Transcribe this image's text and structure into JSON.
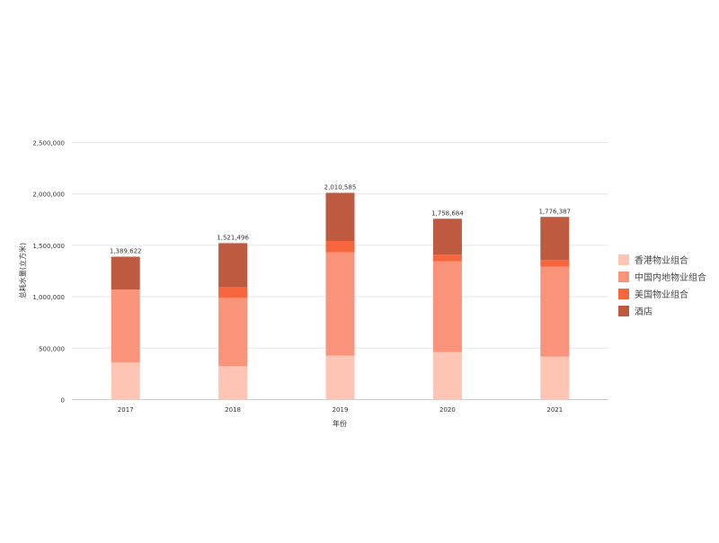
{
  "chart_data": {
    "type": "bar",
    "stacked": true,
    "categories": [
      "2017",
      "2018",
      "2019",
      "2020",
      "2021"
    ],
    "series": [
      {
        "name": "香港物业组合",
        "color": "#fec4b4",
        "values": [
          363000,
          325000,
          427000,
          462000,
          418000
        ]
      },
      {
        "name": "中国内地物业组合",
        "color": "#f9937a",
        "values": [
          708000,
          667000,
          1005000,
          882000,
          874000
        ]
      },
      {
        "name": "美国物业组合",
        "color": "#f7653d",
        "values": [
          0,
          105000,
          111000,
          65000,
          67000
        ]
      },
      {
        "name": "酒店",
        "color": "#bd5a40",
        "values": [
          318622,
          424496,
          467585,
          349684,
          417387
        ]
      }
    ],
    "totals": [
      "1,389,622",
      "1,521,496",
      "2,010,585",
      "1,758,684",
      "1,776,387"
    ],
    "xlabel": "年份",
    "ylabel": "总耗水量(立方米)",
    "ylim": [
      0,
      2500000
    ],
    "yticks": [
      "0",
      "500,000",
      "1,000,000",
      "1,500,000",
      "2,000,000",
      "2,500,000"
    ],
    "grid": true,
    "legend": "right"
  }
}
